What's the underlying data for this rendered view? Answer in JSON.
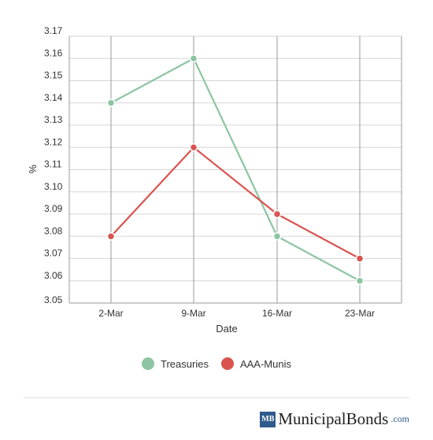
{
  "chart_data": {
    "type": "line",
    "categories": [
      "2-Mar",
      "9-Mar",
      "16-Mar",
      "23-Mar"
    ],
    "series": [
      {
        "name": "Treasuries",
        "color": "#8dc5a2",
        "values": [
          3.14,
          3.16,
          3.08,
          3.06
        ]
      },
      {
        "name": "AAA-Munis",
        "color": "#d9534f",
        "values": [
          3.08,
          3.12,
          3.09,
          3.07
        ]
      }
    ],
    "xlabel": "Date",
    "ylabel": "%",
    "ylim": [
      3.05,
      3.17
    ],
    "yticks": [
      "3.05",
      "3.06",
      "3.07",
      "3.08",
      "3.09",
      "3.10",
      "3.11",
      "3.12",
      "3.13",
      "3.14",
      "3.15",
      "3.16",
      "3.17"
    ],
    "grid": true,
    "legend_position": "bottom"
  },
  "brand": {
    "badge": "MB",
    "name": "MunicipalBonds",
    "tld": ".com"
  }
}
